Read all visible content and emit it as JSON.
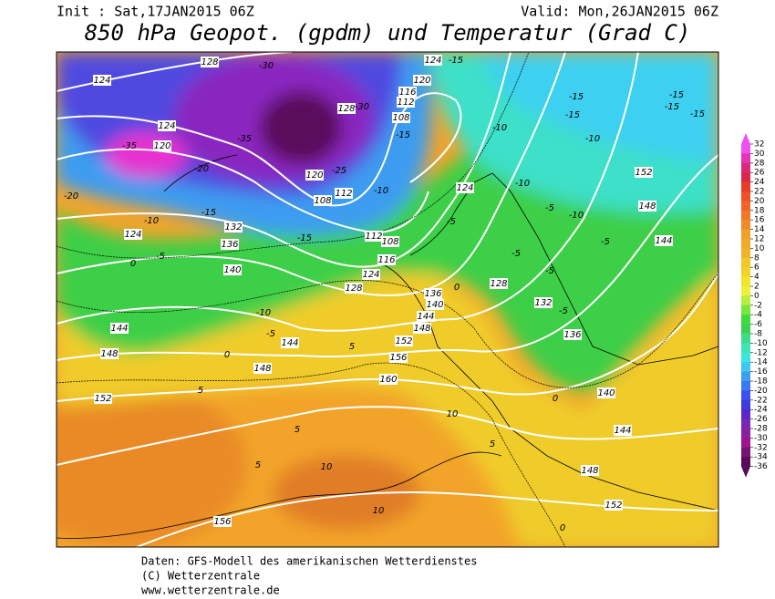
{
  "header": {
    "init": "Init : Sat,17JAN2015 06Z",
    "valid": "Valid: Mon,26JAN2015 06Z",
    "title": "850 hPa Geopot. (gpdm) und Temperatur (Grad C)"
  },
  "map": {
    "labels": [
      128,
      -30,
      124,
      124,
      -15,
      120,
      116,
      112,
      128,
      -30,
      108,
      -15,
      -35,
      124,
      -35,
      120,
      -15,
      -15,
      -15,
      -15,
      -15,
      -10,
      -10,
      152,
      -20,
      -20,
      -15,
      -10,
      124,
      132,
      136,
      140,
      -5,
      0,
      -15,
      112,
      108,
      116,
      124,
      128,
      -10,
      -5,
      144,
      144,
      148,
      148,
      152,
      156,
      160,
      0,
      -10,
      124,
      -5,
      -10,
      -5,
      -10,
      148,
      144,
      -5,
      -5,
      -5,
      128,
      132,
      -5,
      136,
      140,
      0,
      10,
      5,
      144,
      148,
      152,
      0,
      156,
      10,
      10,
      5,
      5,
      5,
      5,
      0,
      -25,
      112,
      108,
      120,
      136,
      140,
      144,
      148,
      152
    ]
  },
  "legend": {
    "ticks": [
      32,
      30,
      28,
      26,
      24,
      22,
      20,
      18,
      16,
      14,
      12,
      10,
      8,
      6,
      4,
      2,
      0,
      -2,
      -4,
      -6,
      -8,
      -10,
      -12,
      -14,
      -16,
      -18,
      -20,
      -22,
      -24,
      -26,
      -28,
      -30,
      -32,
      -34,
      -36
    ],
    "colors": [
      "#f050f0",
      "#e632b4",
      "#dc2878",
      "#dc2846",
      "#e63c28",
      "#f05028",
      "#f06428",
      "#f07828",
      "#f08c28",
      "#f0a028",
      "#f0aa28",
      "#f0b428",
      "#f0c828",
      "#f0d228",
      "#f0e628",
      "#f0f03c",
      "#b4f03c",
      "#78e63c",
      "#3cdc3c",
      "#3cd250",
      "#3cdc8c",
      "#3ce6b4",
      "#3ce6dc",
      "#3cc8f0",
      "#3ca0f0",
      "#3c78f0",
      "#3c50f0",
      "#3c3cdc",
      "#5a28c8",
      "#7828b4",
      "#8c1ea0",
      "#a0148c",
      "#781478",
      "#5a0a5a"
    ]
  },
  "footer": {
    "lines": [
      "Daten: GFS-Modell des amerikanischen Wetterdienstes",
      "(C) Wetterzentrale",
      "www.wetterzentrale.de"
    ]
  }
}
